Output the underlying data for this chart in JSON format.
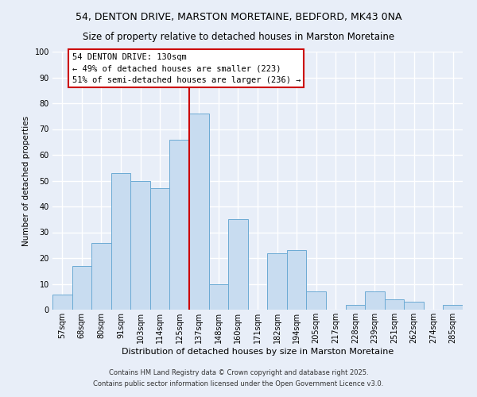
{
  "title_line1": "54, DENTON DRIVE, MARSTON MORETAINE, BEDFORD, MK43 0NA",
  "title_line2": "Size of property relative to detached houses in Marston Moretaine",
  "xlabel": "Distribution of detached houses by size in Marston Moretaine",
  "ylabel": "Number of detached properties",
  "bin_labels": [
    "57sqm",
    "68sqm",
    "80sqm",
    "91sqm",
    "103sqm",
    "114sqm",
    "125sqm",
    "137sqm",
    "148sqm",
    "160sqm",
    "171sqm",
    "182sqm",
    "194sqm",
    "205sqm",
    "217sqm",
    "228sqm",
    "239sqm",
    "251sqm",
    "262sqm",
    "274sqm",
    "285sqm"
  ],
  "bar_heights": [
    6,
    17,
    26,
    53,
    50,
    47,
    66,
    76,
    10,
    35,
    0,
    22,
    23,
    7,
    0,
    2,
    7,
    4,
    3,
    0,
    2
  ],
  "bar_color": "#c8dcf0",
  "bar_edge_color": "#6baad4",
  "vline_x": 6.5,
  "vline_color": "#cc0000",
  "annotation_title": "54 DENTON DRIVE: 130sqm",
  "annotation_line2": "← 49% of detached houses are smaller (223)",
  "annotation_line3": "51% of semi-detached houses are larger (236) →",
  "annotation_box_facecolor": "#ffffff",
  "annotation_box_edgecolor": "#cc0000",
  "ylim": [
    0,
    100
  ],
  "yticks": [
    0,
    10,
    20,
    30,
    40,
    50,
    60,
    70,
    80,
    90,
    100
  ],
  "footnote1": "Contains HM Land Registry data © Crown copyright and database right 2025.",
  "footnote2": "Contains public sector information licensed under the Open Government Licence v3.0.",
  "bg_color": "#e8eef8",
  "plot_bg_color": "#e8eef8",
  "grid_color": "#ffffff",
  "title1_fontsize": 9.0,
  "title2_fontsize": 8.5,
  "ylabel_fontsize": 7.5,
  "xlabel_fontsize": 8.0,
  "tick_fontsize": 7.0,
  "annot_fontsize": 7.5,
  "footnote_fontsize": 6.0
}
